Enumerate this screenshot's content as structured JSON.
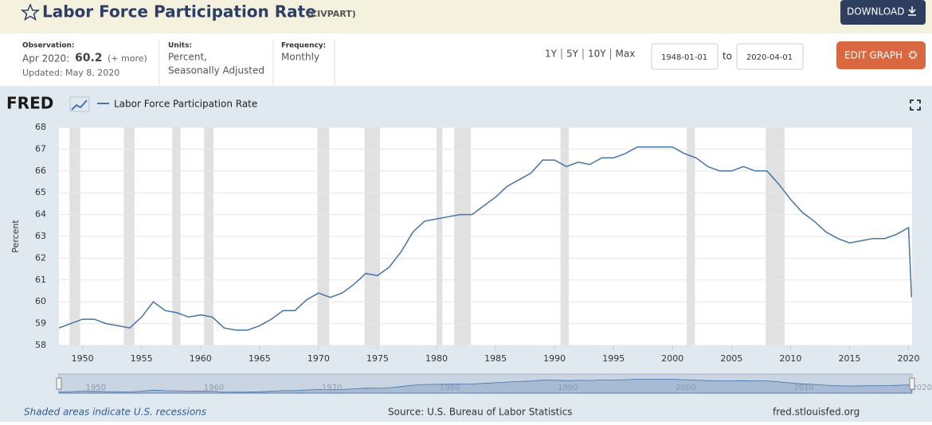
{
  "header": {
    "title": "Labor Force Participation Rate",
    "series_id": "(CIVPART)",
    "download": "DOWNLOAD"
  },
  "info": {
    "observation_label": "Observation:",
    "observation_date": "Apr 2020:",
    "observation_value": "60.2",
    "more": "(+ more)",
    "updated": "Updated: May 8, 2020",
    "units_label": "Units:",
    "units": [
      "Percent,",
      "Seasonally Adjusted"
    ],
    "frequency_label": "Frequency:",
    "frequency": "Monthly"
  },
  "controls": {
    "ranges": [
      "1Y",
      "5Y",
      "10Y",
      "Max"
    ],
    "start": "1948-01-01",
    "to": "to",
    "end": "2020-04-01",
    "edit": "EDIT GRAPH"
  },
  "chart_data": {
    "type": "line",
    "logo": "FRED",
    "ylabel": "Percent",
    "x": [
      1948,
      1949,
      1950,
      1951,
      1952,
      1953,
      1954,
      1955,
      1956,
      1957,
      1958,
      1959,
      1960,
      1961,
      1962,
      1963,
      1964,
      1965,
      1966,
      1967,
      1968,
      1969,
      1970,
      1971,
      1972,
      1973,
      1974,
      1975,
      1976,
      1977,
      1978,
      1979,
      1980,
      1981,
      1982,
      1983,
      1984,
      1985,
      1986,
      1987,
      1988,
      1989,
      1990,
      1991,
      1992,
      1993,
      1994,
      1995,
      1996,
      1997,
      1998,
      1999,
      2000,
      2001,
      2002,
      2003,
      2004,
      2005,
      2006,
      2007,
      2008,
      2009,
      2010,
      2011,
      2012,
      2013,
      2014,
      2015,
      2016,
      2017,
      2018,
      2019,
      2020,
      2020.25
    ],
    "series": [
      {
        "name": "Labor Force Participation Rate",
        "color": "#4572a7",
        "values": [
          58.8,
          59.0,
          59.2,
          59.2,
          59.0,
          58.9,
          58.8,
          59.3,
          60.0,
          59.6,
          59.5,
          59.3,
          59.4,
          59.3,
          58.8,
          58.7,
          58.7,
          58.9,
          59.2,
          59.6,
          59.6,
          60.1,
          60.4,
          60.2,
          60.4,
          60.8,
          61.3,
          61.2,
          61.6,
          62.3,
          63.2,
          63.7,
          63.8,
          63.9,
          64.0,
          64.0,
          64.4,
          64.8,
          65.3,
          65.6,
          65.9,
          66.5,
          66.5,
          66.2,
          66.4,
          66.3,
          66.6,
          66.6,
          66.8,
          67.1,
          67.1,
          67.1,
          67.1,
          66.8,
          66.6,
          66.2,
          66.0,
          66.0,
          66.2,
          66.0,
          66.0,
          65.4,
          64.7,
          64.1,
          63.7,
          63.2,
          62.9,
          62.7,
          62.8,
          62.9,
          62.9,
          63.1,
          63.4,
          60.2
        ]
      }
    ],
    "xlim": [
      1948,
      2020.3
    ],
    "ylim": [
      58,
      68
    ],
    "xticks": [
      1950,
      1955,
      1960,
      1965,
      1970,
      1975,
      1980,
      1985,
      1990,
      1995,
      2000,
      2005,
      2010,
      2015,
      2020
    ],
    "yticks": [
      58,
      59,
      60,
      61,
      62,
      63,
      64,
      65,
      66,
      67,
      68
    ],
    "recessions": [
      [
        1948.9,
        1949.8
      ],
      [
        1953.5,
        1954.4
      ],
      [
        1957.6,
        1958.3
      ],
      [
        1960.3,
        1961.1
      ],
      [
        1969.9,
        1970.9
      ],
      [
        1973.9,
        1975.2
      ],
      [
        1980.0,
        1980.5
      ],
      [
        1981.5,
        1982.9
      ],
      [
        1990.5,
        1991.2
      ],
      [
        2001.2,
        2001.9
      ],
      [
        2007.9,
        2009.5
      ]
    ],
    "navigator_ticks": [
      1950,
      1960,
      1970,
      1980,
      1990,
      2000,
      2010,
      2020
    ]
  },
  "footer": {
    "note": "Shaded areas indicate U.S. recessions",
    "source": "Source: U.S. Bureau of Labor Statistics",
    "site": "fred.stlouisfed.org"
  }
}
